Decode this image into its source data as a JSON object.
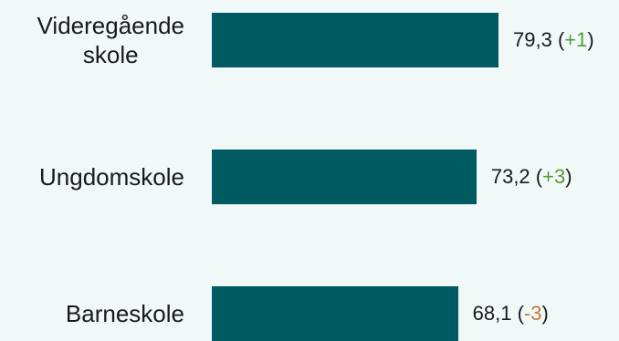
{
  "chart_data": {
    "type": "bar",
    "orientation": "horizontal",
    "categories": [
      "Videregående\nskole",
      "Ungdomskole",
      "Barneskole"
    ],
    "values": [
      79.3,
      73.2,
      68.1
    ],
    "value_labels": [
      "79,3",
      "73,2",
      "68,1"
    ],
    "changes": [
      "+1",
      "+3",
      "-3"
    ],
    "change_sign": [
      "pos",
      "pos",
      "neg"
    ],
    "xlim": [
      0,
      100
    ],
    "grid": false,
    "legend": "none"
  },
  "colors": {
    "bar": "#005a61",
    "background": "#f0f8f8",
    "positive": "#5a9a3c",
    "negative": "#c9763a"
  }
}
